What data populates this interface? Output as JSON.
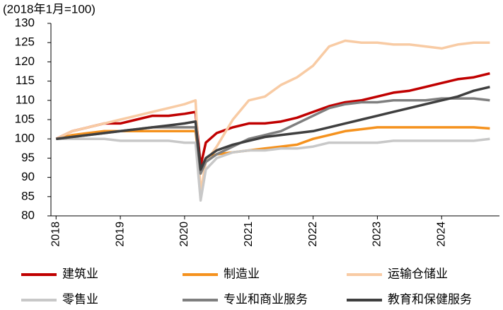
{
  "chart_data": {
    "type": "line",
    "subtitle": "(2018年1月=100)",
    "x": [
      2018,
      2018.25,
      2018.5,
      2018.75,
      2019,
      2019.25,
      2019.5,
      2019.75,
      2020,
      2020.17,
      2020.25,
      2020.33,
      2020.5,
      2020.75,
      2021,
      2021.25,
      2021.5,
      2021.75,
      2022,
      2022.25,
      2022.5,
      2022.75,
      2023,
      2023.25,
      2023.5,
      2023.75,
      2024,
      2024.25,
      2024.5,
      2024.75
    ],
    "xlim": [
      2017.92,
      2024.9
    ],
    "xticks": [
      2018,
      2019,
      2020,
      2021,
      2022,
      2023,
      2024
    ],
    "ylim": [
      80,
      130
    ],
    "yticks": [
      80,
      85,
      90,
      95,
      100,
      105,
      110,
      115,
      120,
      125,
      130
    ],
    "grid": false,
    "series": [
      {
        "name": "建筑业",
        "color": "#c00000",
        "values": [
          100,
          102,
          103,
          104,
          104,
          105,
          106,
          106,
          106.5,
          107,
          93,
          99,
          101.5,
          103,
          104,
          104,
          104.5,
          105.5,
          107,
          108.5,
          109.5,
          110,
          111,
          112,
          112.5,
          113.5,
          114.5,
          115.5,
          116,
          117
        ]
      },
      {
        "name": "制造业",
        "color": "#f5921e",
        "values": [
          100,
          101,
          101.5,
          102,
          102,
          102,
          102,
          102,
          102,
          102,
          91,
          95,
          96,
          96.5,
          97,
          97.5,
          98,
          98.5,
          100,
          101,
          102,
          102.5,
          103,
          103,
          103,
          103,
          103,
          103,
          103,
          102.7
        ]
      },
      {
        "name": "运输仓储业",
        "color": "#f8cba4",
        "values": [
          100,
          102,
          103,
          104,
          105,
          106,
          107,
          108,
          109,
          110,
          86,
          94,
          98,
          105,
          110,
          111,
          114,
          116,
          119,
          124,
          125.5,
          125,
          125,
          124.5,
          124.5,
          124,
          123.5,
          124.5,
          125,
          125
        ]
      },
      {
        "name": "零售业",
        "color": "#c8c8c8",
        "values": [
          100,
          100,
          100,
          100,
          99.5,
          99.5,
          99.5,
          99.5,
          99,
          99,
          84,
          92,
          95,
          96.5,
          97,
          97,
          97.5,
          97.5,
          98,
          99,
          99,
          99,
          99,
          99.5,
          99.5,
          99.5,
          99.5,
          99.5,
          99.5,
          100
        ]
      },
      {
        "name": "专业和商业服务",
        "color": "#7f7f7f",
        "values": [
          100,
          100.5,
          101,
          101.5,
          102,
          102.5,
          103,
          103,
          103,
          103,
          91,
          94,
          96,
          98,
          100,
          101,
          102,
          104,
          106,
          108,
          109,
          109.5,
          109.5,
          110,
          110,
          110,
          110.5,
          110.5,
          110.5,
          110
        ]
      },
      {
        "name": "教育和保健服务",
        "color": "#3f3f3f",
        "values": [
          100,
          100.5,
          101,
          101.5,
          102,
          102.5,
          103,
          103.5,
          104,
          104.5,
          92,
          95,
          97,
          98.5,
          99.5,
          100.5,
          101,
          101.5,
          102,
          103,
          104,
          105,
          106,
          107,
          108,
          109,
          110,
          111,
          112.5,
          113.5
        ]
      }
    ]
  }
}
